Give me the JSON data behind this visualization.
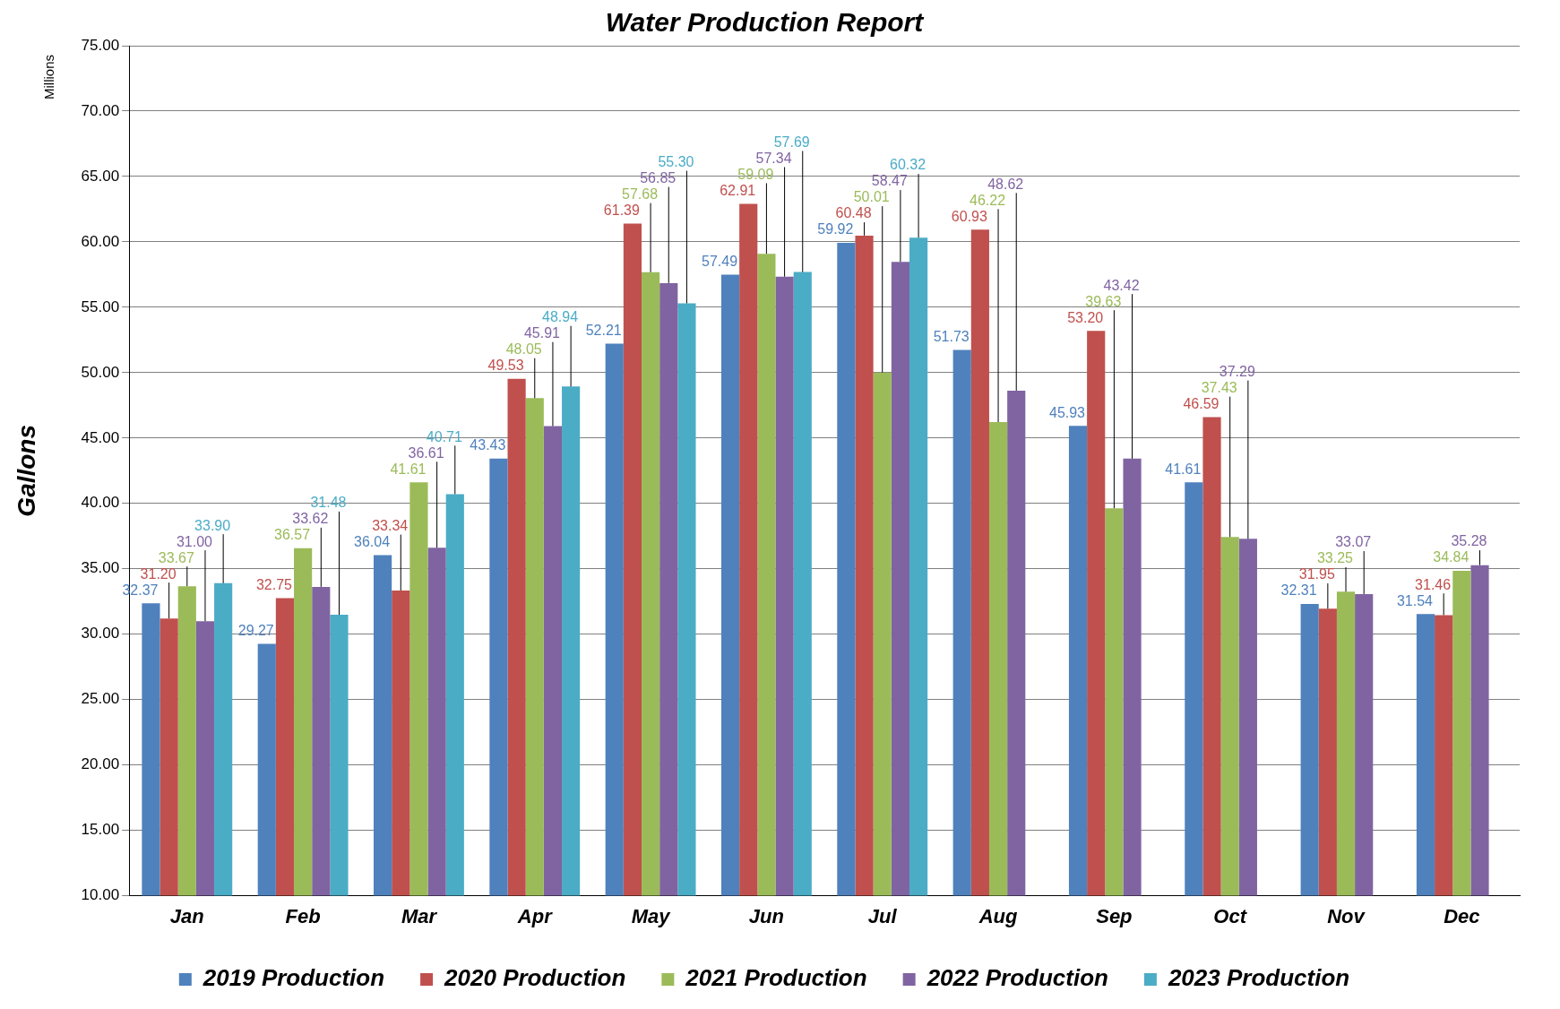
{
  "chart_data": {
    "type": "bar",
    "title": "Water Production Report",
    "ylabel": "Gallons",
    "annotations": [
      "Millions"
    ],
    "categories": [
      "Jan",
      "Feb",
      "Mar",
      "Apr",
      "May",
      "Jun",
      "Jul",
      "Aug",
      "Sep",
      "Oct",
      "Nov",
      "Dec"
    ],
    "series": [
      {
        "name": "2019 Production",
        "color": "#4f81bd",
        "values": [
          32.37,
          29.27,
          36.04,
          43.43,
          52.21,
          57.49,
          59.92,
          51.73,
          45.93,
          41.61,
          32.31,
          31.54
        ],
        "value_labels": [
          "32.37",
          "29.27",
          "36.04",
          "43.43",
          "52.21",
          "57.49",
          "59.92",
          "51.73",
          "45.93",
          "41.61",
          "32.31",
          "31.54"
        ]
      },
      {
        "name": "2020 Production",
        "color": "#c0504d",
        "values": [
          31.2,
          32.75,
          33.34,
          49.53,
          61.39,
          62.91,
          60.48,
          60.93,
          53.2,
          46.59,
          31.95,
          31.46
        ],
        "value_labels": [
          "31.20",
          "32.75",
          "33.34",
          "49.53",
          "61.39",
          "62.91",
          "60.48",
          "60.93",
          "53.20",
          "46.59",
          "31.95",
          "31.46"
        ]
      },
      {
        "name": "2021 Production",
        "color": "#9bbb59",
        "values": [
          33.67,
          36.57,
          41.61,
          48.05,
          57.68,
          59.09,
          50.01,
          46.22,
          39.63,
          37.43,
          33.25,
          34.84
        ],
        "value_labels": [
          "33.67",
          "36.57",
          "41.61",
          "48.05",
          "57.68",
          "59.09",
          "50.01",
          "46.22",
          "39.63",
          "37.43",
          "33.25",
          "34.84"
        ]
      },
      {
        "name": "2022 Production",
        "color": "#8064a2",
        "values": [
          31.0,
          33.62,
          36.61,
          45.91,
          56.85,
          57.34,
          58.47,
          48.62,
          43.42,
          37.29,
          33.07,
          35.28
        ],
        "value_labels": [
          "31.00",
          "33.62",
          "36.61",
          "45.91",
          "56.85",
          "57.34",
          "58.47",
          "48.62",
          "43.42",
          "37.29",
          "33.07",
          "35.28"
        ]
      },
      {
        "name": "2023 Production",
        "color": "#4bacc6",
        "values": [
          33.9,
          31.48,
          40.71,
          48.94,
          55.3,
          57.69,
          60.32,
          null,
          null,
          null,
          null,
          null
        ],
        "value_labels": [
          "33.90",
          "31.48",
          "40.71",
          "48.94",
          "55.30",
          "57.69",
          "60.32",
          null,
          null,
          null,
          null,
          null
        ]
      }
    ],
    "ylim": [
      10,
      75
    ],
    "yticks": [
      {
        "value": 10,
        "label": "10.00"
      },
      {
        "value": 15,
        "label": "15.00"
      },
      {
        "value": 20,
        "label": "20.00"
      },
      {
        "value": 25,
        "label": "25.00"
      },
      {
        "value": 30,
        "label": "30.00"
      },
      {
        "value": 35,
        "label": "35.00"
      },
      {
        "value": 40,
        "label": "40.00"
      },
      {
        "value": 45,
        "label": "45.00"
      },
      {
        "value": 50,
        "label": "50.00"
      },
      {
        "value": 55,
        "label": "55.00"
      },
      {
        "value": 60,
        "label": "60.00"
      },
      {
        "value": 65,
        "label": "65.00"
      },
      {
        "value": 70,
        "label": "70.00"
      },
      {
        "value": 75,
        "label": "75.00"
      }
    ],
    "grid": "y",
    "legend": "bottom"
  }
}
